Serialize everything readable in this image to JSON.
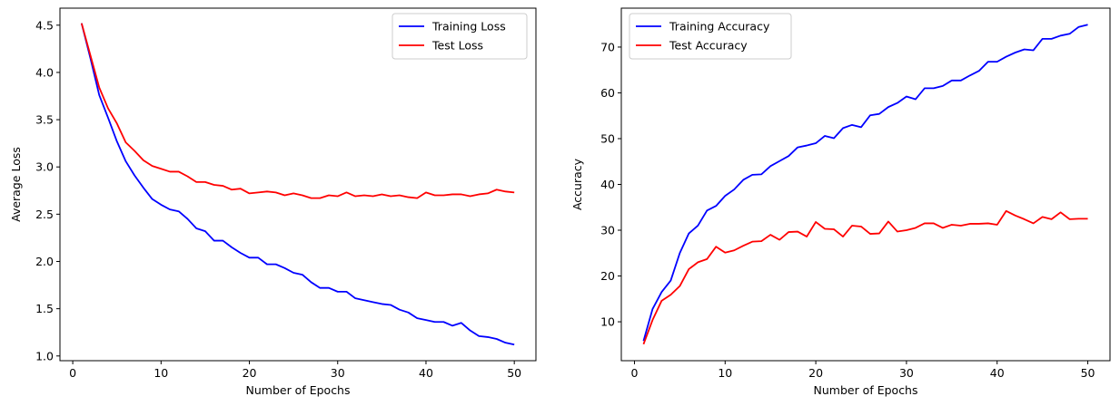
{
  "chart_data": [
    {
      "type": "line",
      "title": "",
      "xlabel": "Number of Epochs",
      "ylabel": "Average Loss",
      "xlim": [
        -1.45,
        52.45
      ],
      "ylim": [
        0.95,
        4.68
      ],
      "xticks": [
        0,
        10,
        20,
        30,
        40,
        50
      ],
      "yticks": [
        1.0,
        1.5,
        2.0,
        2.5,
        3.0,
        3.5,
        4.0,
        4.5
      ],
      "ytick_decimals": 1,
      "grid": false,
      "legend_position": "top-right",
      "x": [
        1,
        2,
        3,
        4,
        5,
        6,
        7,
        8,
        9,
        10,
        11,
        12,
        13,
        14,
        15,
        16,
        17,
        18,
        19,
        20,
        21,
        22,
        23,
        24,
        25,
        26,
        27,
        28,
        29,
        30,
        31,
        32,
        33,
        34,
        35,
        36,
        37,
        38,
        39,
        40,
        41,
        42,
        43,
        44,
        45,
        46,
        47,
        48,
        49,
        50
      ],
      "series": [
        {
          "name": "Training Loss",
          "color": "#0000ff",
          "values": [
            4.52,
            4.15,
            3.76,
            3.52,
            3.27,
            3.06,
            2.91,
            2.78,
            2.66,
            2.6,
            2.55,
            2.53,
            2.45,
            2.35,
            2.32,
            2.22,
            2.22,
            2.15,
            2.09,
            2.04,
            2.04,
            1.97,
            1.97,
            1.93,
            1.88,
            1.86,
            1.78,
            1.72,
            1.72,
            1.68,
            1.68,
            1.61,
            1.59,
            1.57,
            1.55,
            1.54,
            1.49,
            1.46,
            1.4,
            1.38,
            1.36,
            1.36,
            1.32,
            1.35,
            1.27,
            1.21,
            1.2,
            1.18,
            1.14,
            1.12
          ]
        },
        {
          "name": "Test Loss",
          "color": "#ff0000",
          "values": [
            4.52,
            4.18,
            3.84,
            3.62,
            3.46,
            3.26,
            3.17,
            3.07,
            3.01,
            2.98,
            2.95,
            2.95,
            2.9,
            2.84,
            2.84,
            2.81,
            2.8,
            2.76,
            2.77,
            2.72,
            2.73,
            2.74,
            2.73,
            2.7,
            2.72,
            2.7,
            2.67,
            2.67,
            2.7,
            2.69,
            2.73,
            2.69,
            2.7,
            2.69,
            2.71,
            2.69,
            2.7,
            2.68,
            2.67,
            2.73,
            2.7,
            2.7,
            2.71,
            2.71,
            2.69,
            2.71,
            2.72,
            2.76,
            2.74,
            2.73
          ]
        }
      ]
    },
    {
      "type": "line",
      "title": "",
      "xlabel": "Number of Epochs",
      "ylabel": "Accuracy",
      "xlim": [
        -1.45,
        52.45
      ],
      "ylim": [
        1.5,
        78.5
      ],
      "xticks": [
        0,
        10,
        20,
        30,
        40,
        50
      ],
      "yticks": [
        10,
        20,
        30,
        40,
        50,
        60,
        70
      ],
      "ytick_decimals": 0,
      "grid": false,
      "legend_position": "top-left",
      "x": [
        1,
        2,
        3,
        4,
        5,
        6,
        7,
        8,
        9,
        10,
        11,
        12,
        13,
        14,
        15,
        16,
        17,
        18,
        19,
        20,
        21,
        22,
        23,
        24,
        25,
        26,
        27,
        28,
        29,
        30,
        31,
        32,
        33,
        34,
        35,
        36,
        37,
        38,
        39,
        40,
        41,
        42,
        43,
        44,
        45,
        46,
        47,
        48,
        49,
        50
      ],
      "series": [
        {
          "name": "Training Accuracy",
          "color": "#0000ff",
          "values": [
            5.8,
            12.8,
            16.5,
            19.0,
            25.0,
            29.3,
            31.0,
            34.3,
            35.3,
            37.5,
            38.9,
            41.0,
            42.1,
            42.2,
            44.0,
            45.1,
            46.2,
            48.1,
            48.5,
            49.0,
            50.6,
            50.1,
            52.3,
            53.0,
            52.5,
            55.1,
            55.4,
            56.9,
            57.8,
            59.2,
            58.6,
            61.0,
            61.0,
            61.5,
            62.7,
            62.7,
            63.8,
            64.8,
            66.8,
            66.8,
            67.9,
            68.8,
            69.5,
            69.3,
            71.8,
            71.8,
            72.5,
            72.9,
            74.4,
            74.9
          ]
        },
        {
          "name": "Test Accuracy",
          "color": "#ff0000",
          "values": [
            5.1,
            10.4,
            14.6,
            15.9,
            17.8,
            21.5,
            23.0,
            23.7,
            26.4,
            25.1,
            25.6,
            26.6,
            27.5,
            27.6,
            29.0,
            27.9,
            29.6,
            29.7,
            28.6,
            31.8,
            30.3,
            30.2,
            28.6,
            31.0,
            30.8,
            29.2,
            29.3,
            31.9,
            29.7,
            30.0,
            30.5,
            31.5,
            31.5,
            30.5,
            31.2,
            31.0,
            31.4,
            31.4,
            31.5,
            31.2,
            34.2,
            33.2,
            32.4,
            31.5,
            32.9,
            32.4,
            33.9,
            32.4,
            32.5,
            32.5
          ]
        }
      ]
    }
  ]
}
